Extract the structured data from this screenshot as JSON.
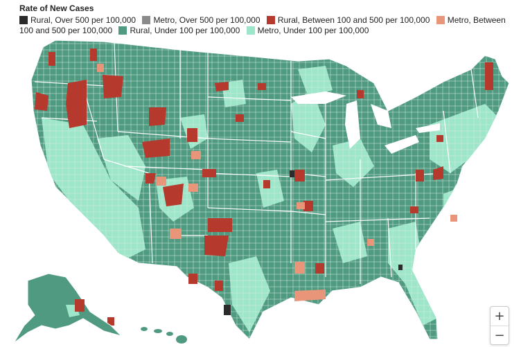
{
  "legend": {
    "title": "Rate of New Cases",
    "items": [
      {
        "label": "Rural, Over 500 per 100,000",
        "color": "#2b2b2b"
      },
      {
        "label": "Metro, Over 500 per 100,000",
        "color": "#8a8a8a"
      },
      {
        "label": "Rural, Between 100 and 500 per 100,000",
        "color": "#b5392c"
      },
      {
        "label": "Metro, Between 100 and 500 per 100,000",
        "color": "#e9957a"
      },
      {
        "label": "Rural, Under 100 per 100,000",
        "color": "#4f9a80"
      },
      {
        "label": "Metro, Under 100 per 100,000",
        "color": "#9de6c9"
      }
    ]
  },
  "controls": {
    "zoom_in": "+",
    "zoom_out": "−"
  },
  "colors": {
    "state_border": "#ffffff",
    "county_border": "#cfe8de"
  }
}
